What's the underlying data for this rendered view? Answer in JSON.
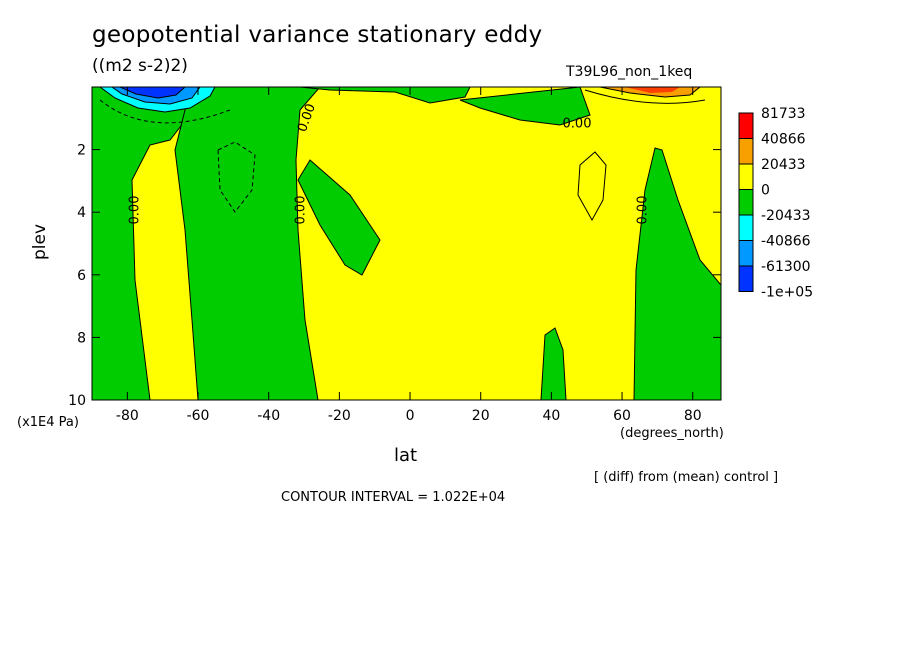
{
  "chart_data": {
    "type": "heatmap",
    "title": "geopotential variance stationary eddy",
    "units": "((m2 s-2)2)",
    "run_label": "T39L96_non_1keq",
    "xlabel": "lat",
    "x_units": "(degrees_north)",
    "ylabel": "plev",
    "y_units": "(x1E4 Pa)",
    "diff_note": "[ (diff) from (mean) control ]",
    "contour_interval_text": "CONTOUR INTERVAL = 1.022E+04",
    "xlim": [
      -90,
      88
    ],
    "ylim": [
      10,
      0
    ],
    "x_ticks": [
      "-80",
      "-60",
      "-40",
      "-20",
      "0",
      "20",
      "40",
      "60",
      "80"
    ],
    "x_tick_values": [
      -80,
      -60,
      -40,
      -20,
      0,
      20,
      40,
      60,
      80
    ],
    "y_ticks": [
      "2",
      "4",
      "6",
      "8",
      "10"
    ],
    "y_tick_values": [
      2,
      4,
      6,
      8,
      10
    ],
    "contour_labels": [
      "0.00",
      "0.00",
      "0.00",
      "0.00",
      "0.00"
    ],
    "colorbar": {
      "labels": [
        "81733",
        "40866",
        "20433",
        "0",
        "-20433",
        "-40866",
        "-61300",
        "-1e+05"
      ],
      "colors": [
        "#ff0000",
        "#f7a000",
        "#ffff00",
        "#00cc00",
        "#00ffff",
        "#0099ff",
        "#0033ff"
      ]
    },
    "regions": [
      {
        "sign": "negative",
        "color": "#00cc00",
        "lat_range": [
          -90,
          -75
        ],
        "plev_range": [
          0,
          10
        ]
      },
      {
        "sign": "positive",
        "color": "#ffff00",
        "lat_range": [
          -75,
          -60
        ],
        "plev_range": [
          2,
          10
        ]
      },
      {
        "sign": "negative",
        "color": "#00cc00",
        "lat_range": [
          -60,
          -25
        ],
        "plev_range": [
          0,
          10
        ]
      },
      {
        "sign": "positive",
        "color": "#ffff00",
        "lat_range": [
          -25,
          88
        ],
        "plev_range": [
          0,
          10
        ]
      },
      {
        "sign": "negative",
        "color": "#00cc00",
        "lat_range": [
          38,
          45
        ],
        "plev_range": [
          7.7,
          10
        ]
      },
      {
        "sign": "negative",
        "color": "#00cc00",
        "lat_range": [
          63,
          88
        ],
        "plev_range": [
          2,
          10
        ]
      },
      {
        "sign": "min",
        "color": "#0033ff",
        "lat_range": [
          -80,
          -65
        ],
        "plev_range": [
          0,
          0.5
        ]
      },
      {
        "sign": "max",
        "color": "#f7a000",
        "lat_range": [
          62,
          78
        ],
        "plev_range": [
          0,
          0.3
        ]
      }
    ]
  }
}
